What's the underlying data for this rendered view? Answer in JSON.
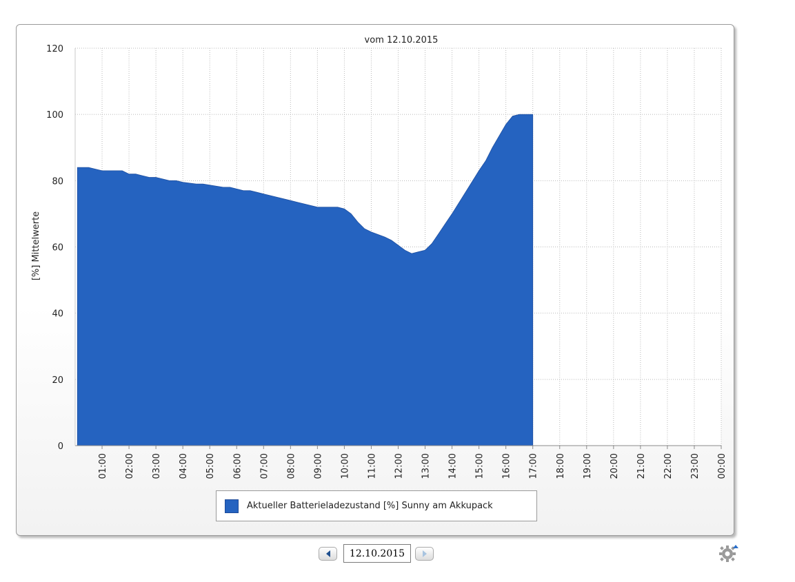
{
  "chart_data": {
    "type": "area",
    "title": "vom 12.10.2015",
    "xlabel": "",
    "ylabel": "[%] Mittelwerte",
    "ylim": [
      0,
      120
    ],
    "yticks": [
      0,
      20,
      40,
      60,
      80,
      100,
      120
    ],
    "xticks": [
      "01:00",
      "02:00",
      "03:00",
      "04:00",
      "05:00",
      "06:00",
      "07:00",
      "08:00",
      "09:00",
      "10:00",
      "11:00",
      "12:00",
      "13:00",
      "14:00",
      "15:00",
      "16:00",
      "17:00",
      "18:00",
      "19:00",
      "20:00",
      "21:00",
      "22:00",
      "23:00",
      "00:00"
    ],
    "grid": true,
    "legend_position": "bottom",
    "series": [
      {
        "name": "Aktueller Batterieladezustand [%] Sunny am Akkupack",
        "color": "#2563c0",
        "x": [
          "00:05",
          "00:30",
          "01:00",
          "01:45",
          "02:00",
          "02:15",
          "02:30",
          "02:45",
          "03:00",
          "03:15",
          "03:30",
          "03:45",
          "04:00",
          "04:30",
          "04:45",
          "05:30",
          "05:45",
          "06:15",
          "06:30",
          "06:45",
          "07:00",
          "07:15",
          "07:30",
          "07:45",
          "08:00",
          "08:15",
          "08:30",
          "08:45",
          "09:00",
          "09:15",
          "09:30",
          "09:45",
          "10:00",
          "10:15",
          "10:30",
          "10:45",
          "11:00",
          "11:30",
          "11:45",
          "12:00",
          "12:15",
          "12:30",
          "12:45",
          "13:00",
          "13:15",
          "13:30",
          "13:45",
          "14:00",
          "14:30",
          "15:00",
          "15:15",
          "15:30",
          "15:45",
          "16:00",
          "16:15",
          "16:30",
          "16:45",
          "17:00"
        ],
        "values": [
          84,
          84,
          83,
          83,
          82,
          82,
          81.5,
          81,
          81,
          80.5,
          80,
          80,
          79.5,
          79,
          79,
          78,
          78,
          77,
          77,
          76.5,
          76,
          75.5,
          75,
          74.5,
          74,
          73.5,
          73,
          72.5,
          72,
          72,
          72,
          72,
          71.5,
          70,
          67.5,
          65.5,
          64.5,
          63,
          62,
          60.5,
          59,
          58,
          58.5,
          59,
          61,
          64,
          67,
          70,
          76.5,
          83,
          86,
          90,
          93.5,
          97,
          99.5,
          100,
          100,
          100
        ]
      }
    ]
  },
  "nav": {
    "date_value": "12.10.2015"
  },
  "icons": {
    "prev": "arrow-left-icon",
    "next": "arrow-right-icon",
    "settings": "gear-icon"
  }
}
